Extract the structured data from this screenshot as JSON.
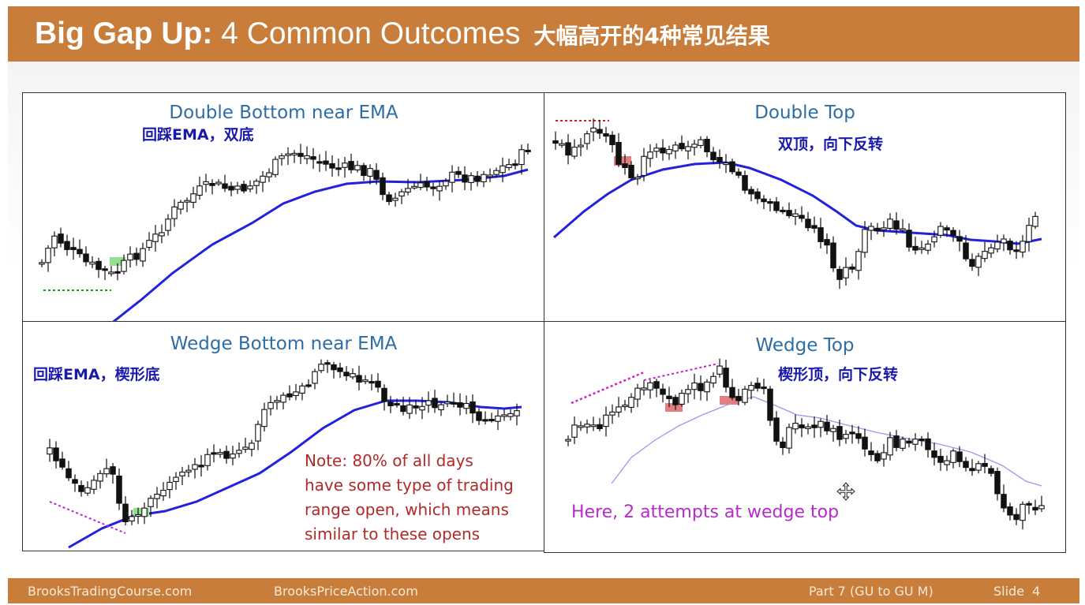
{
  "slide": {
    "title_bold": "Big Gap Up:",
    "title_rest": "4 Common Outcomes",
    "title_zh": "大幅高开的4种常见结果"
  },
  "panels": {
    "double_bottom": {
      "title": "Double Bottom near EMA",
      "zh": "回踩EMA，双底"
    },
    "double_top": {
      "title": "Double Top",
      "zh": "双顶，向下反转"
    },
    "wedge_bottom": {
      "title": "Wedge Bottom near EMA",
      "zh": "回踩EMA，楔形底",
      "note_lines": [
        "Note: 80% of all days",
        "have some type of trading",
        "range open, which means",
        "similar to these opens"
      ]
    },
    "wedge_top": {
      "title": "Wedge Top",
      "zh": "楔形顶，向下反转",
      "note": "Here, 2 attempts at wedge top"
    }
  },
  "colors": {
    "header_bg": "#c87d3a",
    "ema_line": "#2222dd",
    "title_blue": "#2e6da4",
    "zh_blue": "#1a1aaa",
    "note_red": "#b02a2a",
    "note_magenta": "#b52cc8",
    "green_marker": "#90e090",
    "red_marker": "#e08080"
  },
  "footer": {
    "left": "BrooksTradingCourse.com",
    "center": "BrooksPriceAction.com",
    "part": "Part 7 (GU to GU M)",
    "slide_label": "Slide",
    "slide_number": "4"
  },
  "cursor_icon": "move-cursor-icon"
}
